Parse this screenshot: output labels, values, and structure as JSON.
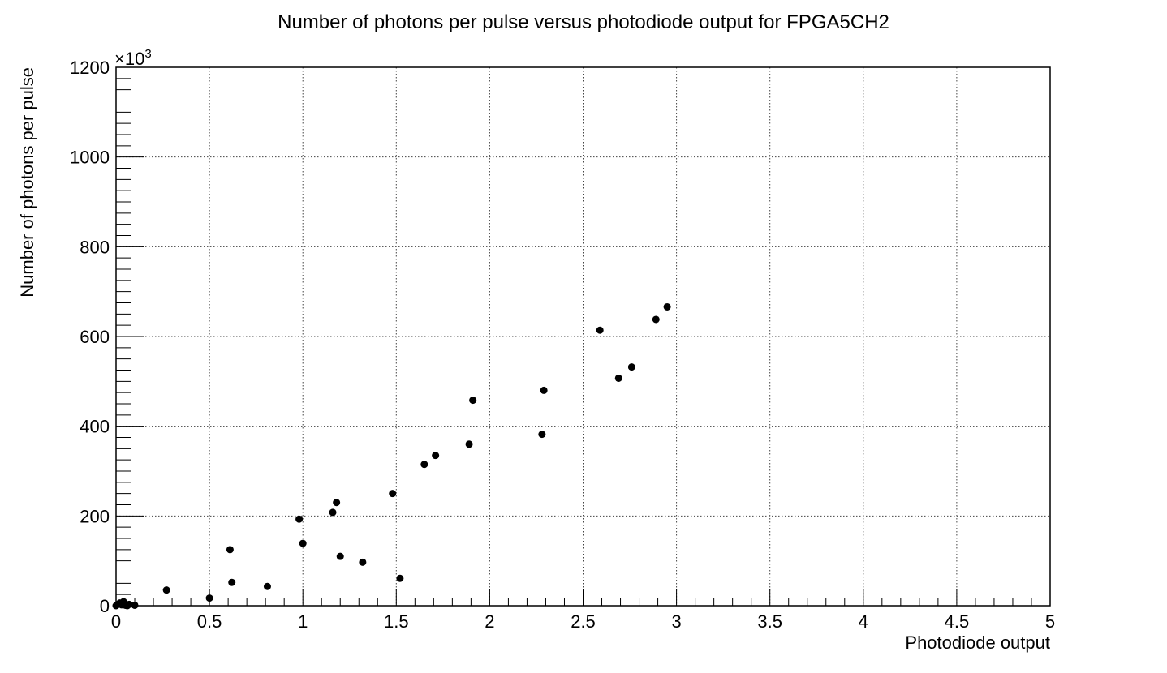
{
  "chart_data": {
    "type": "scatter",
    "title": "Number of photons per pulse versus photodiode output for FPGA5CH2",
    "xlabel": "Photodiode output",
    "ylabel": "Number of photons per pulse",
    "y_multiplier": "×10",
    "y_multiplier_exp": "3",
    "xlim": [
      0,
      5
    ],
    "ylim": [
      0,
      1200
    ],
    "grid": true,
    "legend": "none",
    "marker_color": "#000000",
    "x_ticks": [
      0,
      0.5,
      1,
      1.5,
      2,
      2.5,
      3,
      3.5,
      4,
      4.5,
      5
    ],
    "x_tick_labels": [
      "0",
      "0.5",
      "1",
      "1.5",
      "2",
      "2.5",
      "3",
      "3.5",
      "4",
      "4.5",
      "5"
    ],
    "y_ticks": [
      0,
      200,
      400,
      600,
      800,
      1000,
      1200
    ],
    "y_tick_labels": [
      "0",
      "200",
      "400",
      "600",
      "800",
      "1000",
      "1200"
    ],
    "points": [
      {
        "x": 0.0,
        "y": 0
      },
      {
        "x": 0.01,
        "y": 3
      },
      {
        "x": 0.02,
        "y": 6
      },
      {
        "x": 0.03,
        "y": 2
      },
      {
        "x": 0.04,
        "y": 9
      },
      {
        "x": 0.05,
        "y": 1
      },
      {
        "x": 0.06,
        "y": 0
      },
      {
        "x": 0.07,
        "y": 3
      },
      {
        "x": 0.1,
        "y": 1
      },
      {
        "x": 0.27,
        "y": 35
      },
      {
        "x": 0.5,
        "y": 17
      },
      {
        "x": 0.61,
        "y": 125
      },
      {
        "x": 0.62,
        "y": 52
      },
      {
        "x": 0.81,
        "y": 43
      },
      {
        "x": 0.98,
        "y": 193
      },
      {
        "x": 1.0,
        "y": 139
      },
      {
        "x": 1.16,
        "y": 208
      },
      {
        "x": 1.18,
        "y": 230
      },
      {
        "x": 1.2,
        "y": 110
      },
      {
        "x": 1.32,
        "y": 97
      },
      {
        "x": 1.48,
        "y": 250
      },
      {
        "x": 1.52,
        "y": 61
      },
      {
        "x": 1.65,
        "y": 315
      },
      {
        "x": 1.71,
        "y": 335
      },
      {
        "x": 1.89,
        "y": 360
      },
      {
        "x": 1.91,
        "y": 458
      },
      {
        "x": 2.28,
        "y": 382
      },
      {
        "x": 2.29,
        "y": 480
      },
      {
        "x": 2.59,
        "y": 614
      },
      {
        "x": 2.69,
        "y": 507
      },
      {
        "x": 2.76,
        "y": 532
      },
      {
        "x": 2.89,
        "y": 638
      },
      {
        "x": 2.95,
        "y": 666
      }
    ]
  }
}
